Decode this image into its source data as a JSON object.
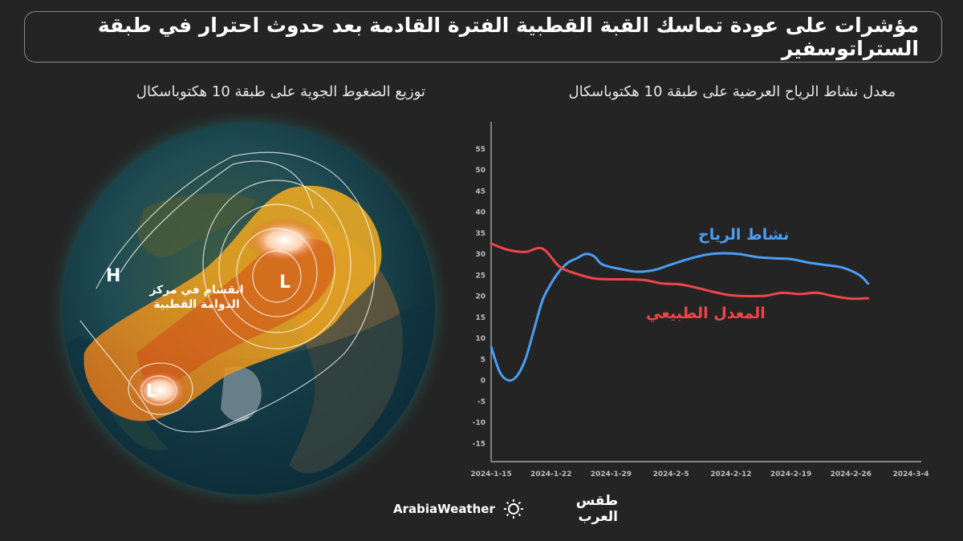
{
  "title": "مؤشرات على عودة تماسك القبة القطبية الفترة القادمة بعد حدوث احترار في طبقة الستراتوسفير",
  "map": {
    "subtitle": "توزيع الضغوط الجوية على طبقة 10 هكتوباسكال",
    "labels": {
      "high": "H",
      "low_center": "L",
      "low_bottom": "L",
      "split_line1": "انقسام في مركز",
      "split_line2": "الدوامة القطبية"
    }
  },
  "chart_subtitle": "معدل نشاط الرياح العرضية على طبقة 10 هكتوباسكال",
  "chart_data": {
    "type": "line",
    "title": "معدل نشاط الرياح العرضية على طبقة 10 هكتوباسكال",
    "xlabel": "",
    "ylabel": "",
    "x_ticks": [
      "2024-1-15",
      "2024-1-22",
      "2024-1-29",
      "2024-2-5",
      "2024-2-12",
      "2024-2-19",
      "2024-2-26",
      "2024-3-4"
    ],
    "y_ticks": [
      55,
      50,
      45,
      40,
      35,
      30,
      25,
      20,
      15,
      10,
      5,
      0,
      -5,
      -10,
      -15
    ],
    "ylim": [
      -15,
      55
    ],
    "grid": false,
    "series": [
      {
        "name": "نشاط الرياح",
        "color": "#4a9ef5",
        "x": [
          "2024-1-15",
          "2024-1-16",
          "2024-1-17",
          "2024-1-18",
          "2024-1-19",
          "2024-1-20",
          "2024-1-21",
          "2024-1-22",
          "2024-1-23",
          "2024-1-24",
          "2024-1-25",
          "2024-1-26",
          "2024-1-27",
          "2024-1-28",
          "2024-1-30",
          "2024-2-1",
          "2024-2-3",
          "2024-2-5",
          "2024-2-7",
          "2024-2-9",
          "2024-2-11",
          "2024-2-13",
          "2024-2-15",
          "2024-2-17",
          "2024-2-19",
          "2024-2-21",
          "2024-2-23",
          "2024-2-25",
          "2024-2-27",
          "2024-2-28"
        ],
        "y": [
          8,
          2,
          0,
          1,
          5,
          12,
          19,
          23,
          26,
          28,
          29,
          30,
          29.5,
          27.5,
          26.5,
          25.8,
          26.2,
          27.5,
          28.8,
          29.8,
          30.2,
          30.0,
          29.3,
          29.0,
          28.8,
          28.0,
          27.4,
          26.8,
          25.0,
          23.0
        ]
      },
      {
        "name": "المعدل الطبيعي",
        "color": "#f0454a",
        "x": [
          "2024-1-15",
          "2024-1-17",
          "2024-1-19",
          "2024-1-21",
          "2024-1-23",
          "2024-1-25",
          "2024-1-27",
          "2024-1-29",
          "2024-1-31",
          "2024-2-2",
          "2024-2-4",
          "2024-2-6",
          "2024-2-8",
          "2024-2-10",
          "2024-2-12",
          "2024-2-14",
          "2024-2-16",
          "2024-2-18",
          "2024-2-20",
          "2024-2-22",
          "2024-2-24",
          "2024-2-26",
          "2024-2-28"
        ],
        "y": [
          32.5,
          31.0,
          30.5,
          31.3,
          27.0,
          25.3,
          24.2,
          24.0,
          24.0,
          23.8,
          23.0,
          22.8,
          22.0,
          21.0,
          20.2,
          20.0,
          20.1,
          20.8,
          20.5,
          20.8,
          20.0,
          19.4,
          19.5
        ]
      }
    ]
  },
  "footer": {
    "brand_en": "ArabiaWeather",
    "brand_ar": "طقس العرب",
    "logo_icon": "sun-swirl-icon"
  }
}
